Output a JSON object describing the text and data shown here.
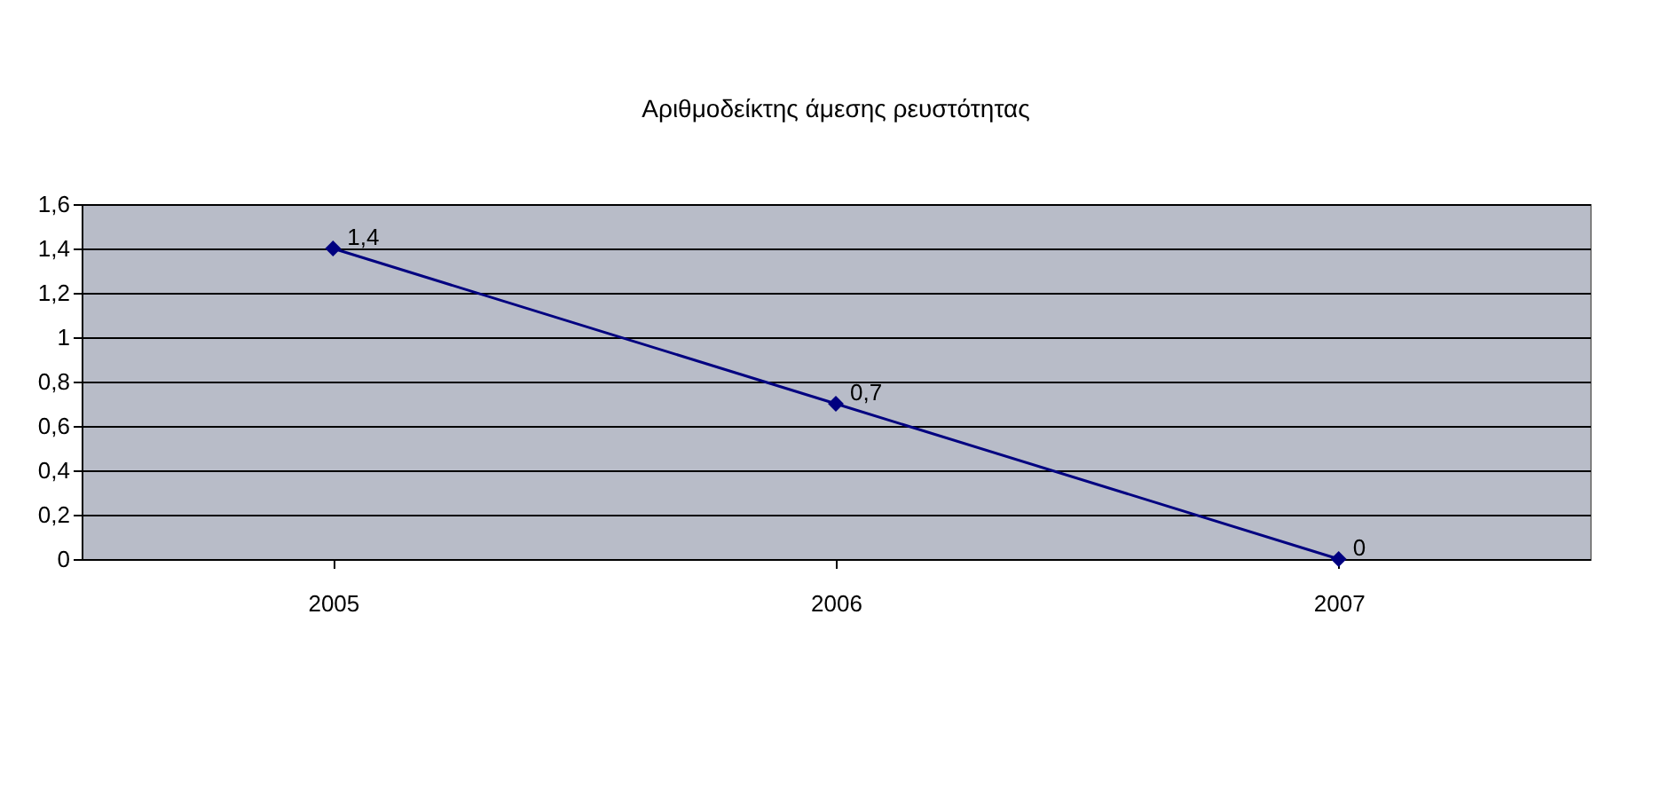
{
  "chart_data": {
    "type": "line",
    "title": "Αριθμοδείκτης άμεσης ρευστότητας",
    "categories": [
      "2005",
      "2006",
      "2007"
    ],
    "series": [
      {
        "color": "#000080",
        "values": [
          1.4,
          0.7,
          0
        ],
        "value_labels": [
          "1,4",
          "0,7",
          "0"
        ]
      }
    ],
    "ylim": [
      0,
      1.6
    ],
    "yticks": [
      0,
      {
        "value": 0.2,
        "label": "0,2"
      },
      {
        "value": 0.4,
        "label": "0,4"
      },
      {
        "value": 0.6,
        "label": "0,6"
      },
      {
        "value": 0.8,
        "label": "0,8"
      },
      1,
      {
        "value": 1.2,
        "label": "1,2"
      },
      {
        "value": 1.4,
        "label": "1,4"
      },
      {
        "value": 1.6,
        "label": "1,6"
      }
    ],
    "grid": "y",
    "marker": "diamond",
    "line_style": "solid"
  }
}
